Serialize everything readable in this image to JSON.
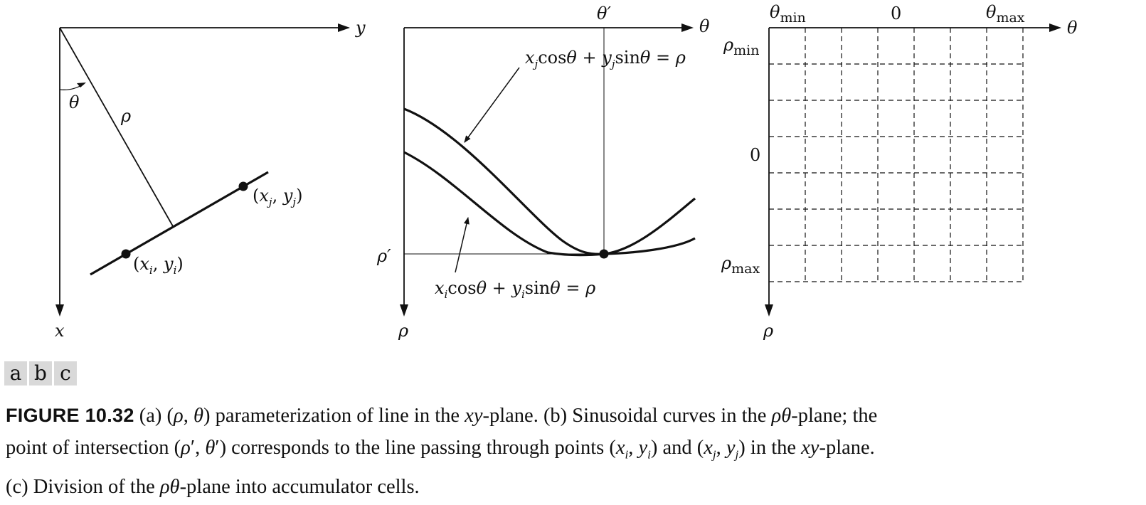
{
  "panels": {
    "a": {
      "axis_y": "y",
      "axis_x": "x",
      "angle": "θ",
      "normal": "ρ",
      "point_i": "(xi, yi)",
      "point_j": "(xj, yj)"
    },
    "b": {
      "axis_theta": "θ",
      "axis_rho": "ρ",
      "theta_prime": "θ′",
      "rho_prime": "ρ′",
      "curve_j_eq": "xjcosθ + yjsinθ = ρ",
      "curve_i_eq": "xicosθ + yisinθ = ρ"
    },
    "c": {
      "axis_theta": "θ",
      "axis_rho": "ρ",
      "theta_min": "θmin",
      "theta_zero": "0",
      "theta_max": "θmax",
      "rho_min": "ρmin",
      "rho_zero": "0",
      "rho_max": "ρmax"
    }
  },
  "panel_tags": [
    "a",
    "b",
    "c"
  ],
  "caption": {
    "label": "FIGURE 10.32",
    "line1": "(a) (ρ, θ) parameterization of line in the xy-plane. (b) Sinusoidal curves in the ρθ-plane; the",
    "line2": "point of intersection (ρ′, θ′) corresponds to the line passing through points (xi, yi) and (xj, yj) in the xy-plane.",
    "line3": "(c) Division of the ρθ-plane into accumulator cells."
  }
}
